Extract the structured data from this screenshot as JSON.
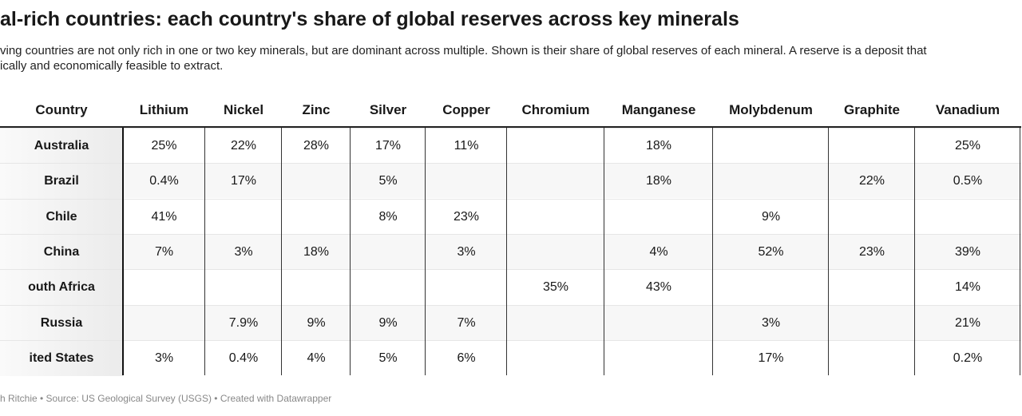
{
  "title": "al-rich countries: each country's share of global reserves across key minerals",
  "subtitle_lines": [
    "ving countries are not only rich in one or two key minerals, but are dominant across multiple. Shown is their share of global reserves of each mineral. A reserve is a deposit that",
    "ically and economically feasible to extract."
  ],
  "footer": "h Ritchie • Source: US Geological Survey (USGS) • Created with Datawrapper",
  "chart_data": {
    "type": "table",
    "columns": [
      "Country",
      "Lithium",
      "Nickel",
      "Zinc",
      "Silver",
      "Copper",
      "Chromium",
      "Manganese",
      "Molybdenum",
      "Graphite",
      "Vanadium"
    ],
    "rows": [
      [
        "Australia",
        "25%",
        "22%",
        "28%",
        "17%",
        "11%",
        "",
        "18%",
        "",
        "",
        "25%"
      ],
      [
        "Brazil",
        "0.4%",
        "17%",
        "",
        "5%",
        "",
        "",
        "18%",
        "",
        "22%",
        "0.5%"
      ],
      [
        "Chile",
        "41%",
        "",
        "",
        "8%",
        "23%",
        "",
        "",
        "9%",
        "",
        ""
      ],
      [
        "China",
        "7%",
        "3%",
        "18%",
        "",
        "3%",
        "",
        "4%",
        "52%",
        "23%",
        "39%"
      ],
      [
        "outh Africa",
        "",
        "",
        "",
        "",
        "",
        "35%",
        "43%",
        "",
        "",
        "14%"
      ],
      [
        "Russia",
        "",
        "7.9%",
        "9%",
        "9%",
        "7%",
        "",
        "",
        "3%",
        "",
        "21%"
      ],
      [
        "ited States",
        "3%",
        "0.4%",
        "4%",
        "5%",
        "6%",
        "",
        "",
        "17%",
        "",
        "0.2%"
      ]
    ]
  }
}
